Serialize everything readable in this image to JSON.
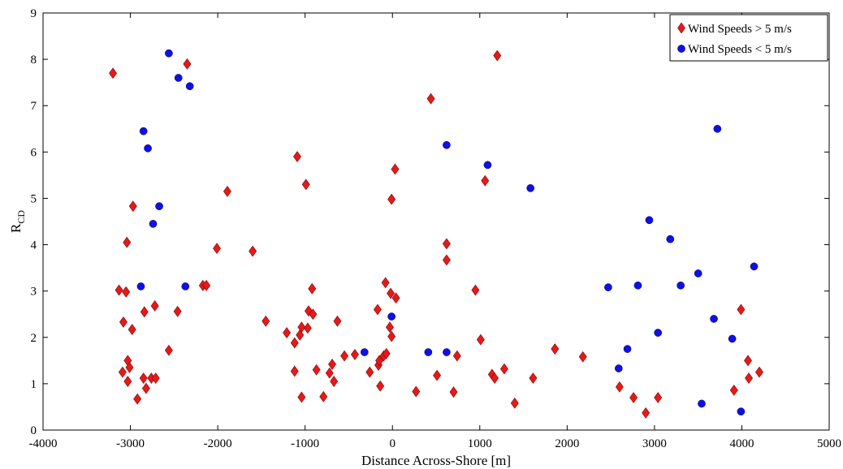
{
  "chart_data": {
    "type": "scatter",
    "xlabel": "Distance Across-Shore [m]",
    "ylabel_main": "R",
    "ylabel_sub": "CD",
    "xlim": [
      -4000,
      5000
    ],
    "ylim": [
      0,
      9
    ],
    "xticks": [
      -4000,
      -3000,
      -2000,
      -1000,
      0,
      1000,
      2000,
      3000,
      4000,
      5000
    ],
    "yticks": [
      0,
      1,
      2,
      3,
      4,
      5,
      6,
      7,
      8,
      9
    ],
    "xtick_labels": [
      "-4000",
      "-3000",
      "-2000",
      "-1000",
      "0",
      "1000",
      "2000",
      "3000",
      "4000",
      "5000"
    ],
    "ytick_labels": [
      "0",
      "1",
      "2",
      "3",
      "4",
      "5",
      "6",
      "7",
      "8",
      "9"
    ],
    "grid": false,
    "legend_position": "top-right",
    "series": [
      {
        "name": "Wind Speeds > 5 m/s",
        "marker": "diamond",
        "color": "#e41a1a",
        "points": [
          [
            -3200,
            7.7
          ],
          [
            -3130,
            3.02
          ],
          [
            -3090,
            1.25
          ],
          [
            -3080,
            2.33
          ],
          [
            -3050,
            2.98
          ],
          [
            -3040,
            4.05
          ],
          [
            -3030,
            1.5
          ],
          [
            -3030,
            1.05
          ],
          [
            -3010,
            1.35
          ],
          [
            -2980,
            2.17
          ],
          [
            -2970,
            4.83
          ],
          [
            -2920,
            0.67
          ],
          [
            -2850,
            1.12
          ],
          [
            -2840,
            2.55
          ],
          [
            -2820,
            0.9
          ],
          [
            -2760,
            1.12
          ],
          [
            -2720,
            2.68
          ],
          [
            -2710,
            1.12
          ],
          [
            -2560,
            1.72
          ],
          [
            -2460,
            2.56
          ],
          [
            -2350,
            7.9
          ],
          [
            -2170,
            3.12
          ],
          [
            -2130,
            3.12
          ],
          [
            -2010,
            3.92
          ],
          [
            -1890,
            5.15
          ],
          [
            -1600,
            3.86
          ],
          [
            -1450,
            2.35
          ],
          [
            -1210,
            2.1
          ],
          [
            -1120,
            1.88
          ],
          [
            -1120,
            1.27
          ],
          [
            -1090,
            5.9
          ],
          [
            -1060,
            2.05
          ],
          [
            -1040,
            2.22
          ],
          [
            -1040,
            0.71
          ],
          [
            -990,
            5.3
          ],
          [
            -970,
            2.2
          ],
          [
            -960,
            2.57
          ],
          [
            -920,
            3.05
          ],
          [
            -910,
            2.5
          ],
          [
            -870,
            1.3
          ],
          [
            -790,
            0.72
          ],
          [
            -720,
            1.23
          ],
          [
            -690,
            1.42
          ],
          [
            -670,
            1.05
          ],
          [
            -630,
            2.35
          ],
          [
            -550,
            1.6
          ],
          [
            -430,
            1.63
          ],
          [
            -260,
            1.25
          ],
          [
            -170,
            2.6
          ],
          [
            -160,
            1.4
          ],
          [
            -150,
            1.5
          ],
          [
            -140,
            0.95
          ],
          [
            -100,
            1.6
          ],
          [
            -80,
            3.18
          ],
          [
            -70,
            1.65
          ],
          [
            -30,
            2.22
          ],
          [
            -20,
            2.95
          ],
          [
            -10,
            4.98
          ],
          [
            -10,
            2.02
          ],
          [
            30,
            5.63
          ],
          [
            40,
            2.85
          ],
          [
            270,
            0.83
          ],
          [
            440,
            7.15
          ],
          [
            510,
            1.18
          ],
          [
            620,
            4.02
          ],
          [
            620,
            3.67
          ],
          [
            700,
            0.82
          ],
          [
            740,
            1.6
          ],
          [
            950,
            3.02
          ],
          [
            1010,
            1.95
          ],
          [
            1060,
            5.38
          ],
          [
            1140,
            1.2
          ],
          [
            1170,
            1.12
          ],
          [
            1200,
            8.08
          ],
          [
            1280,
            1.32
          ],
          [
            1400,
            0.58
          ],
          [
            1610,
            1.12
          ],
          [
            1860,
            1.75
          ],
          [
            2180,
            1.58
          ],
          [
            2600,
            0.93
          ],
          [
            2760,
            0.7
          ],
          [
            2900,
            0.37
          ],
          [
            3040,
            0.7
          ],
          [
            3910,
            0.86
          ],
          [
            3990,
            2.6
          ],
          [
            4070,
            1.5
          ],
          [
            4080,
            1.12
          ],
          [
            4200,
            1.25
          ]
        ]
      },
      {
        "name": "Wind Speeds < 5 m/s",
        "marker": "circle",
        "color": "#1010e0",
        "points": [
          [
            -2560,
            8.13
          ],
          [
            -2450,
            7.6
          ],
          [
            -2320,
            7.42
          ],
          [
            -2850,
            6.45
          ],
          [
            -2800,
            6.08
          ],
          [
            -2670,
            4.83
          ],
          [
            -2740,
            4.45
          ],
          [
            -2880,
            3.1
          ],
          [
            -2370,
            3.1
          ],
          [
            -320,
            1.68
          ],
          [
            -10,
            2.45
          ],
          [
            410,
            1.68
          ],
          [
            620,
            6.15
          ],
          [
            620,
            1.68
          ],
          [
            1090,
            5.72
          ],
          [
            1580,
            5.22
          ],
          [
            2470,
            3.08
          ],
          [
            2590,
            1.33
          ],
          [
            2690,
            1.75
          ],
          [
            2810,
            3.12
          ],
          [
            2940,
            4.53
          ],
          [
            3040,
            2.1
          ],
          [
            3180,
            4.12
          ],
          [
            3300,
            3.12
          ],
          [
            3500,
            3.38
          ],
          [
            3540,
            0.57
          ],
          [
            3680,
            2.4
          ],
          [
            3720,
            6.5
          ],
          [
            3890,
            1.97
          ],
          [
            3990,
            0.4
          ],
          [
            4140,
            3.53
          ]
        ]
      }
    ]
  }
}
